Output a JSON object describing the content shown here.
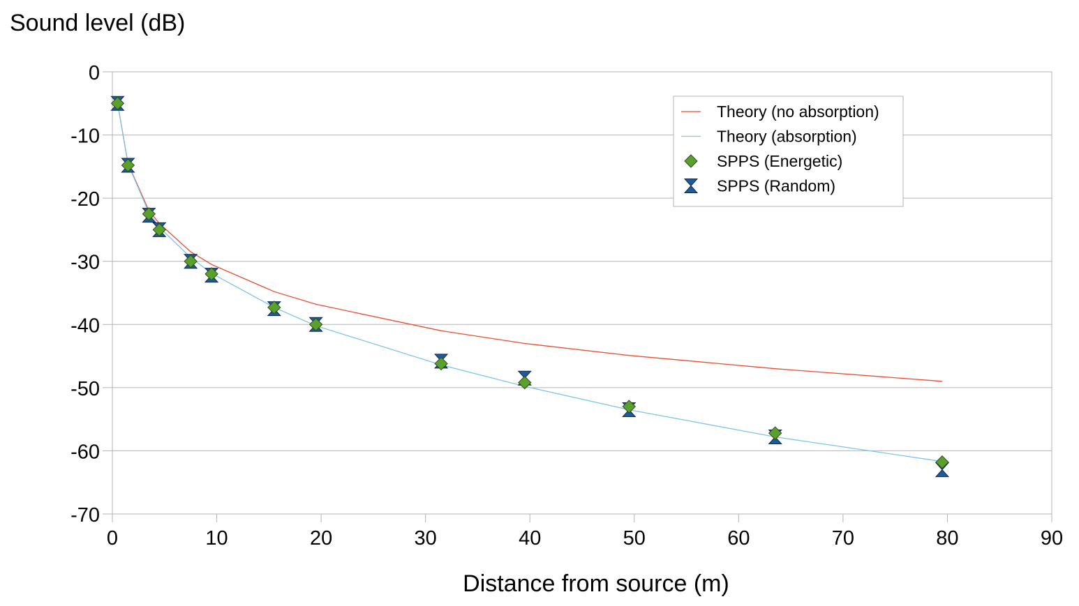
{
  "chart_data": {
    "type": "scatter",
    "xlabel": "Distance from source (m)",
    "ylabel": "Sound level (dB)",
    "xlim": [
      0,
      90
    ],
    "ylim": [
      -70,
      0
    ],
    "x_ticks": [
      0,
      10,
      20,
      30,
      40,
      50,
      60,
      70,
      80,
      90
    ],
    "y_ticks": [
      0,
      -10,
      -20,
      -30,
      -40,
      -50,
      -60,
      -70
    ],
    "grid": "horizontal",
    "legend_position": "top-right",
    "series": [
      {
        "name": "Theory (no absorption)",
        "kind": "line",
        "color": "#ee4a31",
        "x": [
          0.5,
          1.5,
          3.5,
          4.5,
          7.5,
          9.5,
          15.5,
          19.5,
          31.5,
          39.5,
          49.5,
          63.5,
          79.5
        ],
        "y": [
          -5,
          -14.5,
          -22,
          -24,
          -28.5,
          -30.5,
          -34.8,
          -36.8,
          -41,
          -43,
          -44.9,
          -47,
          -49
        ]
      },
      {
        "name": "Theory (absorption)",
        "kind": "line",
        "color": "#7fc4ec",
        "x": [
          0.5,
          1.5,
          3.5,
          4.5,
          7.5,
          9.5,
          15.5,
          19.5,
          31.5,
          39.5,
          49.5,
          63.5,
          79.5
        ],
        "y": [
          -5,
          -14.6,
          -22.3,
          -24.6,
          -29.4,
          -31.9,
          -37.3,
          -40.2,
          -46.4,
          -49.8,
          -53.5,
          -57.8,
          -61.7
        ]
      },
      {
        "name": "SPPS (Energetic)",
        "kind": "marker",
        "marker": "diamond",
        "color": "#5aa02c",
        "x": [
          0.5,
          1.5,
          3.5,
          4.5,
          7.5,
          9.5,
          15.5,
          19.5,
          31.5,
          39.5,
          49.5,
          63.5,
          79.5
        ],
        "y": [
          -5,
          -14.8,
          -22.5,
          -25,
          -30,
          -32,
          -37.3,
          -40,
          -46.2,
          -49.2,
          -53,
          -57.2,
          -61.8
        ]
      },
      {
        "name": "SPPS (Random)",
        "kind": "marker",
        "marker": "hourglass",
        "color": "#1f5a99",
        "x": [
          0.5,
          1.5,
          3.5,
          4.5,
          7.5,
          9.5,
          15.5,
          19.5,
          31.5,
          39.5,
          49.5,
          63.5,
          79.5
        ],
        "y": [
          -5,
          -14.8,
          -22.7,
          -25,
          -30,
          -32.2,
          -37.5,
          -40,
          -45.8,
          -48.5,
          -53.5,
          -57.8,
          -63
        ]
      }
    ]
  }
}
